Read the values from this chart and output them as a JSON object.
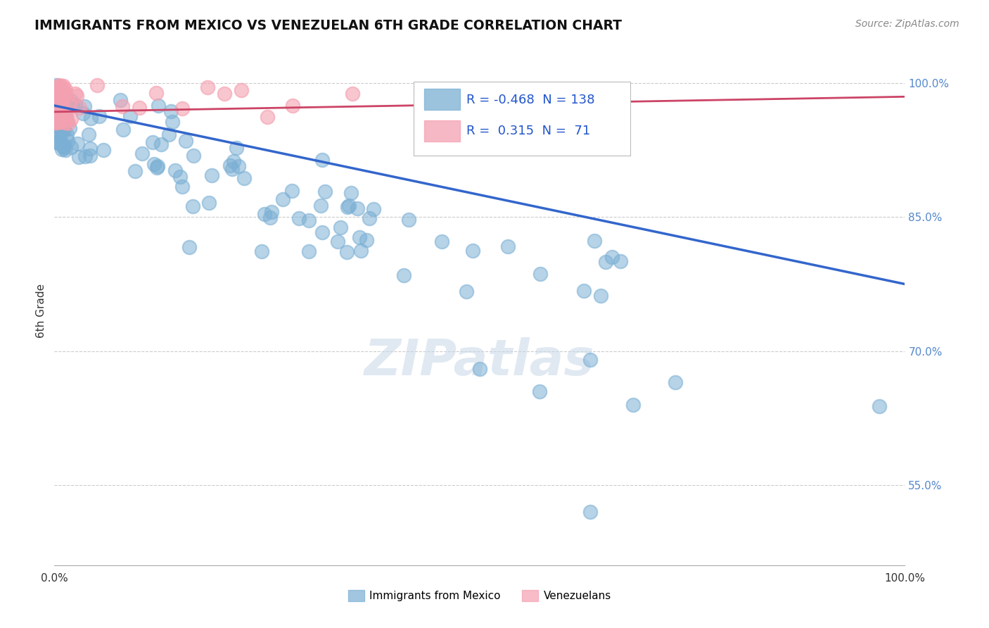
{
  "title": "IMMIGRANTS FROM MEXICO VS VENEZUELAN 6TH GRADE CORRELATION CHART",
  "source": "Source: ZipAtlas.com",
  "ylabel": "6th Grade",
  "ytick_vals": [
    0.55,
    0.7,
    0.85,
    1.0
  ],
  "ytick_labels": [
    "55.0%",
    "70.0%",
    "85.0%",
    "100.0%"
  ],
  "legend_label1": "Immigrants from Mexico",
  "legend_label2": "Venezuelans",
  "r1": -0.468,
  "n1": 138,
  "r2": 0.315,
  "n2": 71,
  "blue_color": "#7bafd4",
  "pink_color": "#f4a0b0",
  "blue_line_color": "#3366cc",
  "pink_line_color": "#cc4466",
  "blue_line_x0": 0.0,
  "blue_line_y0": 0.975,
  "blue_line_x1": 1.0,
  "blue_line_y1": 0.775,
  "pink_line_x0": 0.0,
  "pink_line_y0": 0.968,
  "pink_line_x1": 1.0,
  "pink_line_y1": 0.985,
  "xlim": [
    0.0,
    1.0
  ],
  "ylim": [
    0.46,
    1.03
  ],
  "watermark": "ZIPatlas"
}
